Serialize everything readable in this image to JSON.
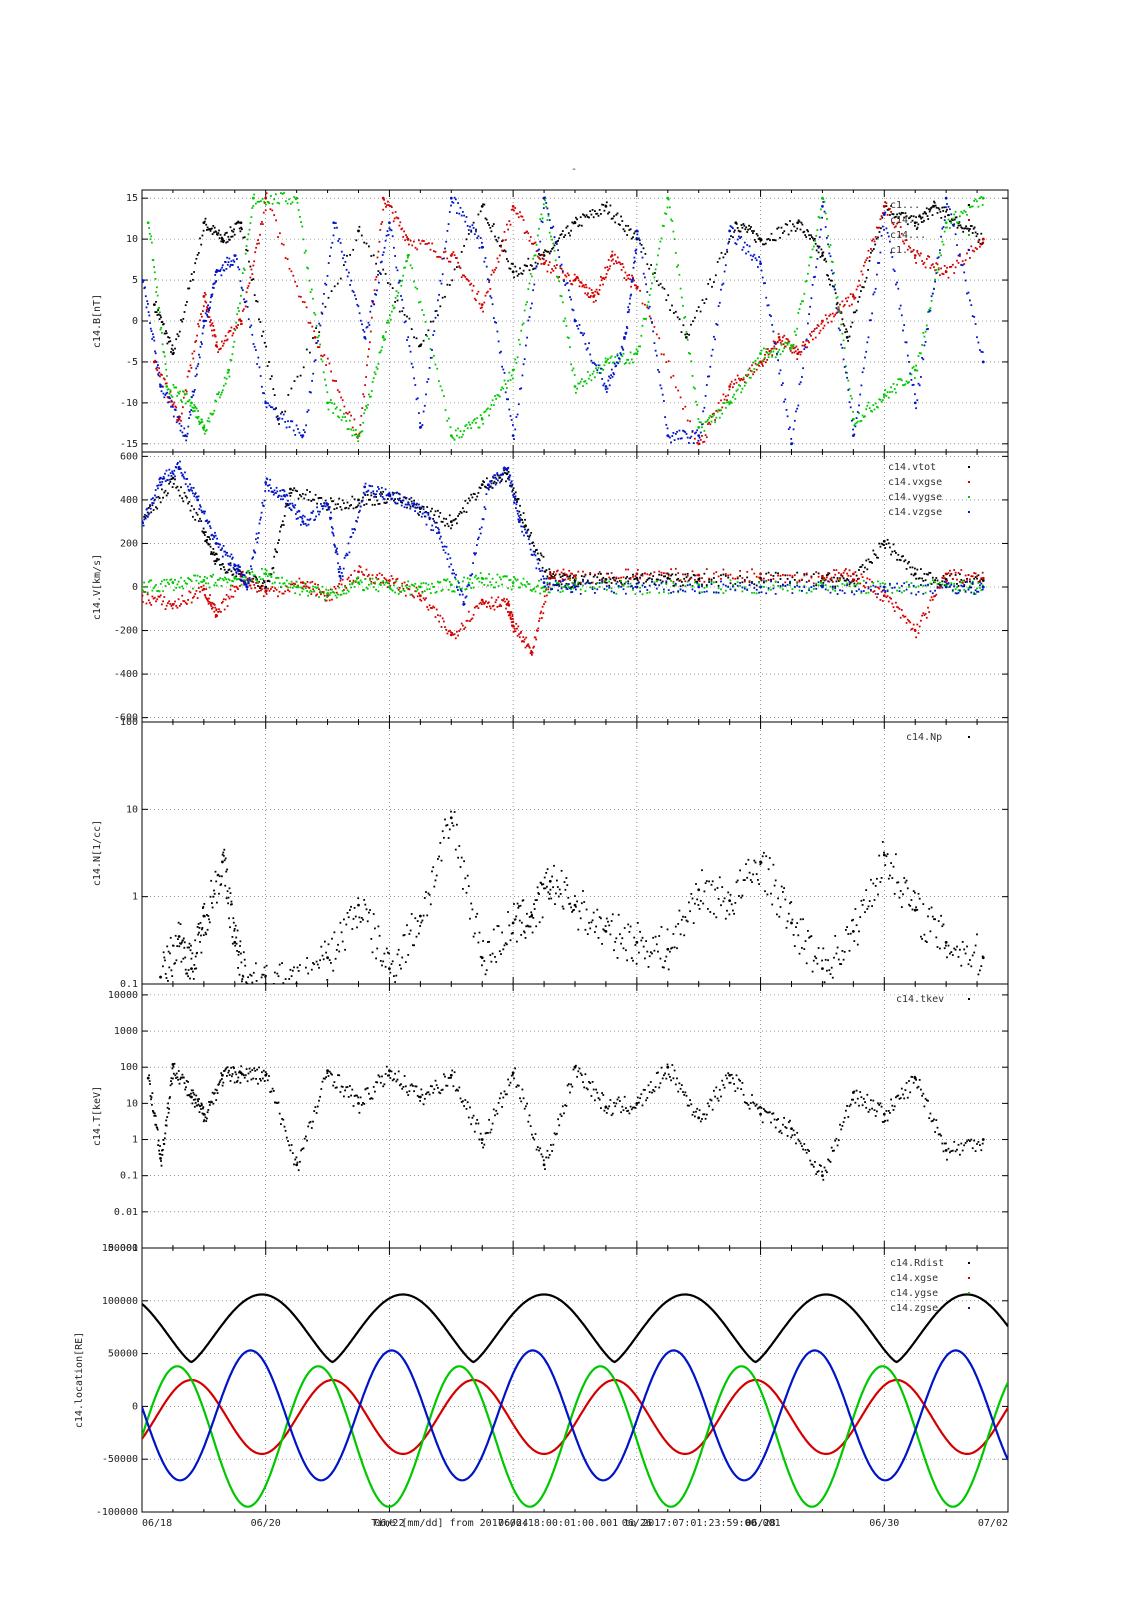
{
  "page": {
    "top_mark": "-"
  },
  "colors": {
    "black": "#000000",
    "red": "#d40000",
    "green": "#00c800",
    "blue": "#0014c8",
    "grid": "#555555"
  },
  "footer": {
    "xlabel": "Time [mm/dd]  from 2017:06:18:00:01:00.001  to  2017:07:01:23:59:00.001"
  },
  "x_ticks": [
    "06/18",
    "06/20",
    "06/22",
    "06/24",
    "06/26",
    "06/28",
    "06/30",
    "07/02"
  ],
  "chart_data": [
    {
      "type": "scatter",
      "ylabel": "c14.B[nT]",
      "ylim": [
        -16,
        16
      ],
      "yticks": [
        "15",
        "10",
        "5",
        "0",
        "-5",
        "-10",
        "-15"
      ],
      "ytick_values": [
        15,
        10,
        5,
        0,
        -5,
        -10,
        -15
      ],
      "legend": [
        "c1...",
        "c14...",
        "c14...",
        "c1..."
      ],
      "series": [
        {
          "color": "black",
          "x": [
            0.2,
            0.5,
            1.0,
            1.3,
            1.6,
            2.2,
            3.5,
            4.5,
            5.5,
            6.0,
            6.5,
            7.0,
            7.5,
            8.0,
            8.8,
            9.6,
            10.0,
            10.6,
            11.0,
            11.4,
            12.0,
            12.5,
            12.8,
            13.2,
            13.6
          ],
          "values": [
            2,
            -4,
            12,
            10,
            12,
            -12,
            11,
            -3,
            14,
            6,
            8,
            12,
            14,
            10,
            -2,
            12,
            10,
            12,
            8,
            -2,
            14,
            12,
            14,
            12,
            10
          ]
        },
        {
          "color": "red",
          "x": [
            0.2,
            0.6,
            1.0,
            1.2,
            1.6,
            2.0,
            2.8,
            3.5,
            3.9,
            4.3,
            5.0,
            5.5,
            6.0,
            6.5,
            7.0,
            7.3,
            7.6,
            8.0,
            9.0,
            9.5,
            10.0,
            10.3,
            10.6,
            11.0,
            11.5,
            12.0,
            12.5,
            13.0,
            13.6
          ],
          "values": [
            -5,
            -12,
            3,
            -3,
            0,
            15,
            -2,
            -14,
            15,
            10,
            8,
            2,
            14,
            7,
            5,
            3,
            8,
            4,
            -15,
            -8,
            -5,
            -2,
            -4,
            0,
            3,
            14,
            8,
            6,
            10
          ]
        },
        {
          "color": "green",
          "x": [
            0.1,
            0.4,
            0.8,
            1.0,
            1.4,
            1.8,
            2.5,
            3.0,
            3.5,
            3.9,
            4.3,
            5.0,
            5.5,
            6.0,
            6.5,
            7.0,
            7.5,
            8.0,
            8.5,
            9.0,
            9.5,
            10.0,
            10.5,
            11.0,
            11.5,
            12.0,
            12.5,
            13.0,
            13.6
          ],
          "values": [
            12,
            -8,
            -10,
            -13,
            -6,
            15,
            15,
            -10,
            -14,
            -2,
            8,
            -14,
            -12,
            -6,
            15,
            -8,
            -5,
            -4,
            15,
            -13,
            -10,
            -4,
            -3,
            15,
            -12,
            -9,
            -6,
            12,
            15
          ]
        },
        {
          "color": "blue",
          "x": [
            0.0,
            0.3,
            0.7,
            1.0,
            1.2,
            1.5,
            2.0,
            2.6,
            3.1,
            3.6,
            4.0,
            4.5,
            5.0,
            5.5,
            6.0,
            6.5,
            7.0,
            7.5,
            7.8,
            8.0,
            8.5,
            9.0,
            9.5,
            10.0,
            10.5,
            11.0,
            11.5,
            12.0,
            12.5,
            13.0,
            13.6
          ],
          "values": [
            5,
            -8,
            -14,
            0,
            6,
            8,
            -10,
            -14,
            12,
            -2,
            12,
            -13,
            15,
            9,
            -14,
            15,
            0,
            -8,
            -2,
            11,
            -14,
            -14,
            11,
            7,
            -15,
            14,
            -14,
            13,
            -10,
            15,
            -5
          ]
        }
      ]
    },
    {
      "type": "scatter",
      "ylabel": "c14.V[km/s]",
      "ylim": [
        -620,
        620
      ],
      "yticks": [
        "600",
        "400",
        "200",
        "0",
        "-200",
        "-400",
        "-600"
      ],
      "ytick_values": [
        600,
        400,
        200,
        0,
        -200,
        -400,
        -600
      ],
      "legend": [
        "c14.vtot",
        "c14.vxgse",
        "c14.vygse",
        "c14.vzgse"
      ],
      "series": [
        {
          "name": "c14.vtot",
          "color": "black",
          "x": [
            0.0,
            0.5,
            1.0,
            1.2,
            1.6,
            2.0,
            2.4,
            3.0,
            3.5,
            4.0,
            4.5,
            5.0,
            5.5,
            5.9,
            6.2,
            6.6,
            7.0,
            7.5,
            8.0,
            8.5,
            9.0,
            10.0,
            11.0,
            11.5,
            12.0,
            12.5,
            13.0,
            13.6
          ],
          "values": [
            300,
            500,
            250,
            120,
            60,
            0,
            450,
            380,
            400,
            420,
            360,
            300,
            470,
            520,
            280,
            40,
            30,
            35,
            40,
            40,
            35,
            40,
            40,
            30,
            210,
            60,
            35,
            30
          ]
        },
        {
          "name": "c14.vxgse",
          "color": "red",
          "x": [
            0.0,
            0.5,
            1.0,
            1.2,
            1.6,
            2.0,
            2.6,
            3.0,
            3.5,
            4.0,
            4.5,
            5.0,
            5.5,
            5.9,
            6.0,
            6.3,
            6.6,
            7.0,
            8.0,
            9.0,
            10.0,
            11.0,
            11.5,
            12.0,
            12.5,
            13.0,
            13.6
          ],
          "values": [
            -40,
            -80,
            -10,
            -130,
            50,
            -20,
            20,
            -40,
            70,
            30,
            -40,
            -220,
            -60,
            -80,
            -180,
            -300,
            60,
            50,
            60,
            55,
            60,
            50,
            60,
            -40,
            -200,
            60,
            40
          ]
        },
        {
          "name": "c14.vygse",
          "color": "green",
          "x": [
            0.0,
            0.5,
            1.0,
            1.5,
            2.0,
            2.5,
            3.0,
            3.5,
            4.0,
            4.5,
            5.0,
            5.5,
            6.0,
            6.5,
            7.0,
            8.0,
            9.0,
            10.0,
            11.0,
            12.0,
            13.0,
            13.6
          ],
          "values": [
            0,
            20,
            30,
            40,
            60,
            0,
            -30,
            20,
            0,
            0,
            10,
            40,
            20,
            0,
            10,
            0,
            10,
            0,
            10,
            0,
            10,
            0
          ]
        },
        {
          "name": "c14.vzgse",
          "color": "blue",
          "x": [
            0.0,
            0.3,
            0.6,
            0.9,
            1.2,
            1.5,
            1.7,
            2.0,
            2.3,
            2.6,
            3.0,
            3.2,
            3.6,
            4.0,
            4.4,
            4.8,
            5.2,
            5.6,
            5.9,
            6.1,
            6.5,
            7.0,
            8.0,
            9.0,
            10.0,
            11.0,
            12.0,
            13.0,
            13.6
          ],
          "values": [
            300,
            500,
            550,
            400,
            200,
            100,
            0,
            480,
            420,
            300,
            380,
            50,
            460,
            420,
            380,
            250,
            -80,
            470,
            540,
            300,
            20,
            0,
            0,
            0,
            0,
            0,
            0,
            0,
            0
          ]
        }
      ]
    },
    {
      "type": "scatter",
      "ylabel": "c14.N[1/cc]",
      "yscale": "log",
      "ylim": [
        0.1,
        100
      ],
      "yticks": [
        "100",
        "10",
        "1",
        "0.1"
      ],
      "ytick_values": [
        100,
        10,
        1,
        0.1
      ],
      "legend": [
        "c14.Np"
      ],
      "series": [
        {
          "name": "c14.Np",
          "color": "black",
          "x": [
            0.3,
            0.6,
            0.8,
            1.0,
            1.3,
            1.5,
            1.7,
            2.0,
            2.5,
            3.0,
            3.5,
            4.0,
            4.5,
            5.0,
            5.5,
            6.0,
            6.3,
            6.6,
            7.0,
            7.5,
            8.0,
            8.5,
            9.0,
            9.5,
            10.0,
            10.5,
            11.0,
            11.5,
            12.0,
            12.5,
            13.0,
            13.6
          ],
          "values": [
            0.12,
            0.35,
            0.15,
            0.6,
            2.5,
            0.3,
            0.1,
            0.1,
            0.1,
            0.2,
            0.8,
            0.15,
            0.6,
            8.0,
            0.2,
            0.5,
            0.6,
            1.5,
            0.8,
            0.4,
            0.3,
            0.25,
            1.2,
            0.9,
            2.5,
            0.5,
            0.15,
            0.4,
            3.0,
            0.7,
            0.3,
            0.2
          ]
        }
      ]
    },
    {
      "type": "scatter",
      "ylabel": "c14.T[keV]",
      "yscale": "log",
      "ylim": [
        0.001,
        20000
      ],
      "yticks": [
        "10000",
        "1000",
        "100",
        "10",
        "1",
        "0.1",
        "0.01",
        "0.001"
      ],
      "ytick_values": [
        10000,
        1000,
        100,
        10,
        1,
        0.1,
        0.01,
        0.001
      ],
      "legend": [
        "c14.tkev"
      ],
      "series": [
        {
          "name": "c14.tkev",
          "color": "black",
          "x": [
            0.1,
            0.3,
            0.5,
            0.8,
            1.0,
            1.3,
            1.6,
            2.0,
            2.5,
            3.0,
            3.5,
            4.0,
            4.5,
            5.0,
            5.5,
            6.0,
            6.5,
            7.0,
            7.5,
            8.0,
            8.5,
            9.0,
            9.5,
            10.0,
            10.5,
            11.0,
            11.5,
            12.0,
            12.5,
            13.0,
            13.6
          ],
          "values": [
            50,
            0.3,
            120,
            15,
            5,
            60,
            70,
            60,
            0.2,
            80,
            10,
            80,
            15,
            60,
            1,
            70,
            0.2,
            100,
            8,
            10,
            100,
            4,
            60,
            5,
            2,
            0.1,
            20,
            5,
            50,
            0.5,
            1
          ]
        }
      ]
    },
    {
      "type": "line",
      "ylabel": "c14.location[RE]",
      "ylim": [
        -100000,
        150000
      ],
      "yticks": [
        "150000",
        "100000",
        "50000",
        "0",
        "-50000",
        "-100000"
      ],
      "ytick_values": [
        150000,
        100000,
        50000,
        0,
        -50000,
        -100000
      ],
      "legend": [
        "c14.Rdist",
        "c14.xgse",
        "c14.ygse",
        "c14.zgse"
      ],
      "series": [
        {
          "name": "c14.Rdist",
          "color": "black",
          "orbit": "rdist",
          "period_days": 2.28,
          "phase": 0.65,
          "min": 42000,
          "max": 106000
        },
        {
          "name": "c14.xgse",
          "color": "red",
          "orbit": "sine",
          "period_days": 2.28,
          "phase": 0.9,
          "min": -45000,
          "max": 25000
        },
        {
          "name": "c14.ygse",
          "color": "green",
          "orbit": "sine",
          "period_days": 2.28,
          "phase": 0.0,
          "min": -95000,
          "max": 38000
        },
        {
          "name": "c14.zgse",
          "color": "blue",
          "orbit": "sine",
          "period_days": 2.28,
          "phase": 0.48,
          "min": -70000,
          "max": 53000
        }
      ]
    }
  ]
}
